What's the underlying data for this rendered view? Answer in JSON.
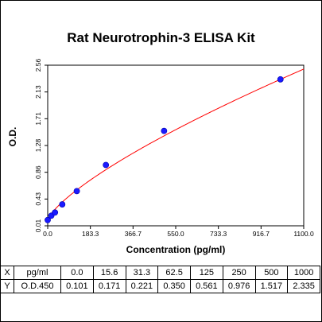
{
  "chart_data": {
    "type": "scatter",
    "title": "Rat Neurotrophin-3 ELISA Kit",
    "xlabel": "Concentration (pg/ml)",
    "ylabel": "O.D.",
    "xlim": [
      0,
      1100
    ],
    "ylim": [
      0.01,
      2.56
    ],
    "x_ticks": [
      "0.0",
      "183.3",
      "366.7",
      "550.0",
      "733.3",
      "916.7",
      "1100.0"
    ],
    "y_ticks": [
      "0.01",
      "0.43",
      "0.86",
      "1.28",
      "1.71",
      "2.13",
      "2.56"
    ],
    "series": [
      {
        "x": [
          0,
          15.6,
          31.3,
          62.5,
          125,
          250,
          500,
          1000
        ],
        "y": [
          0.101,
          0.171,
          0.221,
          0.35,
          0.561,
          0.976,
          1.517,
          2.335
        ]
      }
    ],
    "fit_curve": "smooth fitted standard curve through the points",
    "grid": false,
    "legend": "none",
    "colors": {
      "points": "#1a1aff",
      "curve": "#ff0000",
      "axes": "#000000"
    }
  },
  "table": {
    "rows": [
      {
        "axis": "X",
        "unit": "pg/ml",
        "values": [
          "0.0",
          "15.6",
          "31.3",
          "62.5",
          "125",
          "250",
          "500",
          "1000"
        ]
      },
      {
        "axis": "Y",
        "unit": "O.D.450",
        "values": [
          "0.101",
          "0.171",
          "0.221",
          "0.350",
          "0.561",
          "0.976",
          "1.517",
          "2.335"
        ]
      }
    ]
  }
}
